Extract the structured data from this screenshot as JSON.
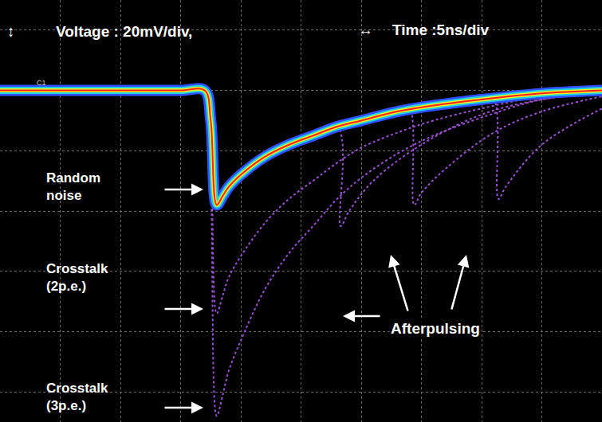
{
  "chart_data": {
    "type": "line",
    "header": {
      "voltage_symbol": "↕",
      "voltage": "Voltage : 20mV/div,",
      "time_symbol": "↔",
      "time": "Time :5ns/div"
    },
    "channel_label": "C1",
    "annotations": {
      "random_noise": "Random noise",
      "crosstalk_2pe": "Crosstalk (2p.e.)",
      "crosstalk_3pe": "Crosstalk (3p.e.)",
      "afterpulsing": "Afterpulsing"
    },
    "x": [
      0,
      5,
      10,
      15,
      17,
      17.5,
      18,
      18.5,
      19,
      20,
      22,
      24,
      26,
      28,
      30,
      33,
      36,
      40,
      45,
      50
    ],
    "series": [
      {
        "color": "#9a4fd0",
        "line_style": "dotted",
        "values": [
          0,
          0,
          0,
          0,
          0,
          -30,
          -108,
          -101,
          -93,
          -83,
          -66,
          -54,
          -45,
          -36,
          -29,
          -21,
          -15,
          -9,
          -3,
          -1
        ]
      },
      {
        "color": "#9a4fd0",
        "line_style": "dotted",
        "values": [
          0,
          0,
          0,
          0,
          0,
          -20,
          -74,
          -68,
          -62,
          -55,
          -44,
          -36,
          -30,
          -24,
          -19,
          -14,
          -10,
          -6,
          -2,
          -1
        ]
      },
      {
        "color": "#9a4fd0",
        "line_style": "dotted",
        "x": [
          17.5,
          18,
          20,
          24,
          28,
          28.3,
          29,
          31,
          35,
          40,
          45,
          50
        ],
        "values": [
          -10,
          -38,
          -28,
          -18,
          -12,
          -45,
          -40,
          -30,
          -18,
          -8,
          -3,
          -1
        ]
      },
      {
        "color": "#9a4fd0",
        "line_style": "dotted",
        "x": [
          17.5,
          18,
          20,
          24,
          28,
          33,
          34,
          34.4,
          35,
          37,
          41,
          45,
          50
        ],
        "values": [
          -10,
          -38,
          -28,
          -18,
          -12,
          -7,
          -6,
          -38,
          -34,
          -26,
          -14,
          -7,
          -2
        ]
      },
      {
        "color": "#9a4fd0",
        "line_style": "dotted",
        "x": [
          17.5,
          18,
          20,
          24,
          28,
          33,
          40,
          41,
          41.4,
          42,
          45,
          50
        ],
        "values": [
          -10,
          -38,
          -28,
          -18,
          -12,
          -7,
          -3,
          -3,
          -36,
          -32,
          -18,
          -6
        ]
      },
      {
        "color": "#ff2020",
        "line_style": "solid",
        "values": [
          0,
          0,
          0,
          0,
          0,
          -10,
          -38,
          -35,
          -32,
          -28,
          -22,
          -18,
          -15,
          -12,
          -10,
          -7,
          -5,
          -3,
          -1,
          0
        ]
      }
    ],
    "xlim": [
      0,
      50
    ],
    "xticks": [
      0,
      5,
      10,
      15,
      20,
      25,
      30,
      35,
      40,
      45,
      50
    ],
    "ylim": [
      -110,
      30
    ],
    "yticks": [
      -100,
      -80,
      -60,
      -40,
      -20,
      0,
      20
    ],
    "grid": true,
    "tick_labels": false
  }
}
